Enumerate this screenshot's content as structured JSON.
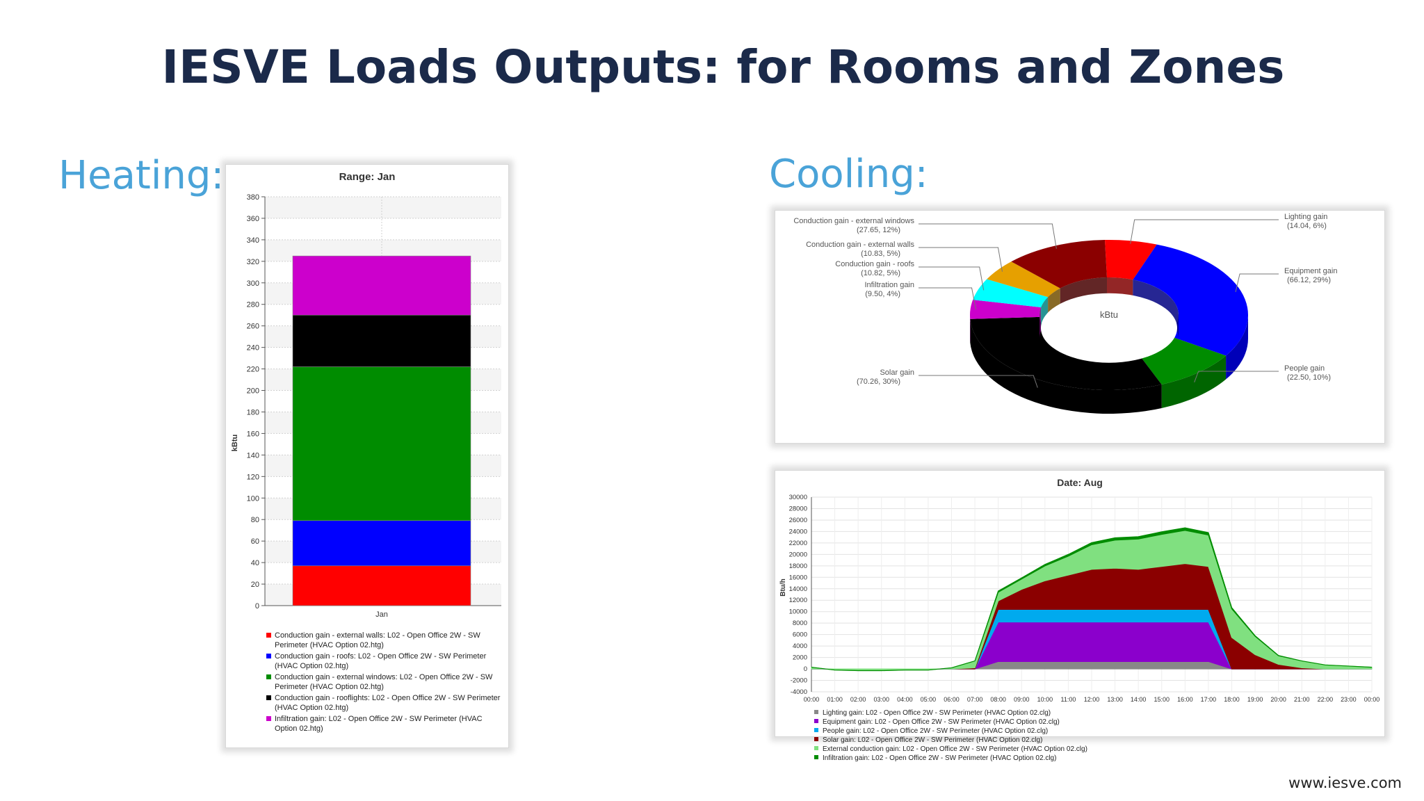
{
  "slide": {
    "title": "IESVE Loads Outputs: for Rooms and Zones",
    "heating_label": "Heating:",
    "cooling_label": "Cooling:",
    "website": "www.iesve.com"
  },
  "chart_data": [
    {
      "id": "heating",
      "type": "bar",
      "stacked": true,
      "title": "Range: Jan",
      "xlabel": "",
      "ylabel": "kBtu",
      "categories": [
        "Jan"
      ],
      "ylim": [
        0,
        380
      ],
      "yticks": [
        0,
        20,
        40,
        60,
        80,
        100,
        120,
        140,
        160,
        180,
        200,
        220,
        240,
        260,
        280,
        300,
        320,
        340,
        360,
        380
      ],
      "grid": true,
      "legend_position": "bottom",
      "series": [
        {
          "name": "Conduction gain - external walls: L02 - Open Office 2W - SW Perimeter (HVAC Option 02.htg)",
          "color": "#ff0000",
          "values": [
            37
          ]
        },
        {
          "name": "Conduction gain - roofs: L02 - Open Office 2W - SW Perimeter (HVAC Option 02.htg)",
          "color": "#0000ff",
          "values": [
            42
          ]
        },
        {
          "name": "Conduction gain - external windows: L02 - Open Office 2W - SW Perimeter (HVAC Option 02.htg)",
          "color": "#008c00",
          "values": [
            143
          ]
        },
        {
          "name": "Conduction gain - rooflights: L02 - Open Office 2W - SW Perimeter (HVAC Option 02.htg)",
          "color": "#000000",
          "values": [
            48
          ]
        },
        {
          "name": "Infiltration gain: L02 - Open Office 2W - SW Perimeter (HVAC Option 02.htg)",
          "color": "#cc00cc",
          "values": [
            55
          ]
        }
      ]
    },
    {
      "id": "cooling-pie",
      "type": "pie",
      "donut": true,
      "center_label": "kBtu",
      "slices": [
        {
          "name": "Lighting gain",
          "value": 14.04,
          "percent": "6%",
          "label": "Lighting gain",
          "sublabel": "(14.04, 6%)",
          "color": "#ff0000",
          "side": "right"
        },
        {
          "name": "Equipment gain",
          "value": 66.12,
          "percent": "29%",
          "label": "Equipment gain",
          "sublabel": "(66.12, 29%)",
          "color": "#0000ff",
          "side": "right"
        },
        {
          "name": "People gain",
          "value": 22.5,
          "percent": "10%",
          "label": "People gain",
          "sublabel": "(22.50, 10%)",
          "color": "#008c00",
          "side": "right"
        },
        {
          "name": "Solar gain",
          "value": 70.26,
          "percent": "30%",
          "label": "Solar gain",
          "sublabel": "(70.26, 30%)",
          "color": "#000000",
          "side": "left"
        },
        {
          "name": "Infiltration gain",
          "value": 9.5,
          "percent": "4%",
          "label": "Infiltration gain",
          "sublabel": "(9.50, 4%)",
          "color": "#cc00cc",
          "side": "left"
        },
        {
          "name": "Conduction gain - roofs",
          "value": 10.82,
          "percent": "5%",
          "label": "Conduction gain - roofs",
          "sublabel": "(10.82, 5%)",
          "color": "#00ffff",
          "side": "left"
        },
        {
          "name": "Conduction gain - external walls",
          "value": 10.83,
          "percent": "5%",
          "label": "Conduction gain - external walls",
          "sublabel": "(10.83, 5%)",
          "color": "#e6a000",
          "side": "left"
        },
        {
          "name": "Conduction gain - external windows",
          "value": 27.65,
          "percent": "12%",
          "label": "Conduction gain - external windows",
          "sublabel": "(27.65, 12%)",
          "color": "#8b0000",
          "side": "left"
        }
      ]
    },
    {
      "id": "cooling-area",
      "type": "area",
      "stacked": true,
      "title": "Date: Aug",
      "xlabel": "",
      "ylabel": "Btu/h",
      "ylim": [
        -4000,
        30000
      ],
      "yticks": [
        -4000,
        -2000,
        0,
        2000,
        4000,
        6000,
        8000,
        10000,
        12000,
        14000,
        16000,
        18000,
        20000,
        22000,
        24000,
        26000,
        28000,
        30000
      ],
      "x": [
        "00:00",
        "01:00",
        "02:00",
        "03:00",
        "04:00",
        "05:00",
        "06:00",
        "07:00",
        "08:00",
        "09:00",
        "10:00",
        "11:00",
        "12:00",
        "13:00",
        "14:00",
        "15:00",
        "16:00",
        "17:00",
        "18:00",
        "19:00",
        "20:00",
        "21:00",
        "22:00",
        "23:00",
        "00:00"
      ],
      "grid": true,
      "legend_position": "bottom",
      "series": [
        {
          "name": "Lighting gain: L02 - Open Office 2W - SW Perimeter (HVAC Option 02.clg)",
          "color": "#888888",
          "values": [
            0,
            0,
            0,
            0,
            0,
            0,
            0,
            0,
            1300,
            1300,
            1300,
            1300,
            1300,
            1300,
            1300,
            1300,
            1300,
            1300,
            0,
            0,
            0,
            0,
            0,
            0,
            0
          ]
        },
        {
          "name": "Equipment gain: L02 - Open Office 2W - SW Perimeter (HVAC Option 02.clg)",
          "color": "#8b00cc",
          "values": [
            0,
            0,
            0,
            0,
            0,
            0,
            0,
            0,
            6900,
            6900,
            6900,
            6900,
            6900,
            6900,
            6900,
            6900,
            6900,
            6900,
            0,
            0,
            0,
            0,
            0,
            0,
            0
          ]
        },
        {
          "name": "People gain: L02 - Open Office 2W - SW Perimeter (HVAC Option 02.clg)",
          "color": "#00aaee",
          "values": [
            0,
            0,
            0,
            0,
            0,
            0,
            0,
            0,
            2200,
            2200,
            2200,
            2200,
            2200,
            2200,
            2200,
            2200,
            2200,
            2200,
            0,
            0,
            0,
            0,
            0,
            0,
            0
          ]
        },
        {
          "name": "Solar gain: L02 - Open Office 2W - SW Perimeter (HVAC Option 02.clg)",
          "color": "#8b0000",
          "values": [
            0,
            0,
            0,
            0,
            0,
            0,
            0,
            200,
            1500,
            3500,
            5000,
            6000,
            7000,
            7200,
            7000,
            7500,
            8000,
            7500,
            5500,
            2500,
            800,
            200,
            0,
            0,
            0
          ]
        },
        {
          "name": "External conduction gain: L02 - Open Office 2W - SW Perimeter (HVAC Option 02.clg)",
          "color": "#80e080",
          "values": [
            300,
            -200,
            -300,
            -300,
            -200,
            -200,
            200,
            1200,
            1500,
            1800,
            2600,
            3300,
            4300,
            4900,
            5300,
            5600,
            5800,
            5500,
            5000,
            3200,
            1500,
            1200,
            700,
            500,
            300
          ]
        },
        {
          "name": "Infiltration gain: L02 - Open Office 2W - SW Perimeter (HVAC Option 02.clg)",
          "color": "#008c00",
          "values": [
            0,
            0,
            0,
            0,
            0,
            0,
            0,
            0,
            200,
            200,
            250,
            300,
            350,
            400,
            400,
            450,
            450,
            400,
            200,
            100,
            50,
            0,
            0,
            0,
            0
          ]
        }
      ]
    }
  ]
}
